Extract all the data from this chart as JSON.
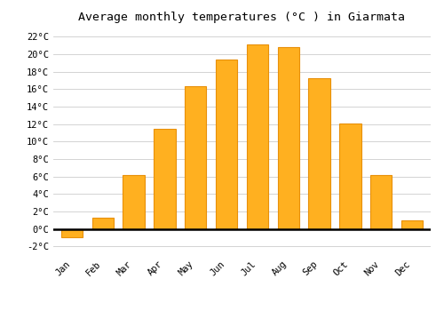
{
  "title": "Average monthly temperatures (°C ) in Giarmata",
  "months": [
    "Jan",
    "Feb",
    "Mar",
    "Apr",
    "May",
    "Jun",
    "Jul",
    "Aug",
    "Sep",
    "Oct",
    "Nov",
    "Dec"
  ],
  "values": [
    -1.0,
    1.3,
    6.2,
    11.5,
    16.3,
    19.4,
    21.1,
    20.8,
    17.3,
    12.1,
    6.2,
    1.0
  ],
  "bar_color": "#FFB020",
  "bar_edge_color": "#E8900A",
  "ylim": [
    -3,
    23
  ],
  "yticks": [
    -2,
    0,
    2,
    4,
    6,
    8,
    10,
    12,
    14,
    16,
    18,
    20,
    22
  ],
  "ytick_labels": [
    "-2°C",
    "0°C",
    "2°C",
    "4°C",
    "6°C",
    "8°C",
    "10°C",
    "12°C",
    "14°C",
    "16°C",
    "18°C",
    "20°C",
    "22°C"
  ],
  "background_color": "#ffffff",
  "grid_color": "#cccccc",
  "title_fontsize": 9.5,
  "tick_fontsize": 7.5,
  "bar_width": 0.7
}
